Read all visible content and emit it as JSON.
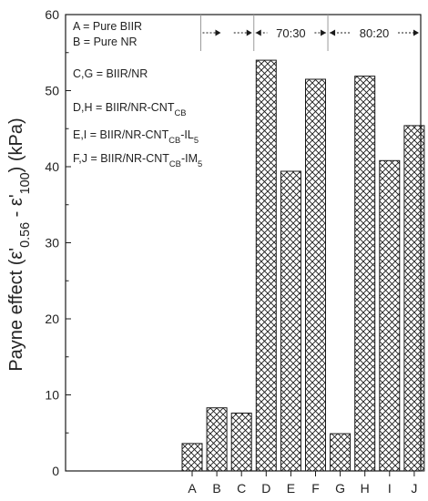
{
  "chart_data": {
    "type": "bar",
    "ylabel_parts": [
      {
        "t": "Payne effect (ε'",
        "sub": false
      },
      {
        "t": "0.56",
        "sub": true
      },
      {
        "t": " - ε'",
        "sub": false
      },
      {
        "t": "100",
        "sub": true
      },
      {
        "t": ") (kPa)",
        "sub": false
      }
    ],
    "ylim": [
      0,
      60
    ],
    "yticks": [
      "0",
      "10",
      "20",
      "30",
      "40",
      "50",
      "60"
    ],
    "ytick_values": [
      0,
      10,
      20,
      30,
      40,
      50,
      60
    ],
    "categories": [
      "A",
      "B",
      "C",
      "D",
      "E",
      "F",
      "G",
      "H",
      "I",
      "J"
    ],
    "values": [
      3.6,
      8.3,
      7.6,
      54.0,
      39.4,
      51.5,
      4.9,
      51.9,
      40.8,
      45.4
    ],
    "bar_fill": "cross-hatch",
    "colors": {
      "bar_stroke": "#1a1a1a",
      "hatch": "#1a1a1a",
      "axis": "#1a1a1a",
      "divider": "#9a9a9a"
    },
    "group_labels": [
      "70:30",
      "80:20"
    ],
    "legend": [
      [
        {
          "t": "A = Pure BIIR",
          "sub": false
        }
      ],
      [
        {
          "t": "B = Pure NR",
          "sub": false
        }
      ],
      [
        {
          "t": "C,G = BIIR/NR",
          "sub": false
        }
      ],
      [
        {
          "t": "D,H = BIIR/NR-CNT",
          "sub": false
        },
        {
          "t": "CB",
          "sub": true
        }
      ],
      [
        {
          "t": "E,I  = BIIR/NR-CNT",
          "sub": false
        },
        {
          "t": "CB",
          "sub": true
        },
        {
          "t": "-IL",
          "sub": false
        },
        {
          "t": "5",
          "sub": true
        }
      ],
      [
        {
          "t": "F,J  = BIIR/NR-CNT",
          "sub": false
        },
        {
          "t": "CB",
          "sub": true
        },
        {
          "t": "-IM",
          "sub": false
        },
        {
          "t": "5",
          "sub": true
        }
      ]
    ]
  }
}
